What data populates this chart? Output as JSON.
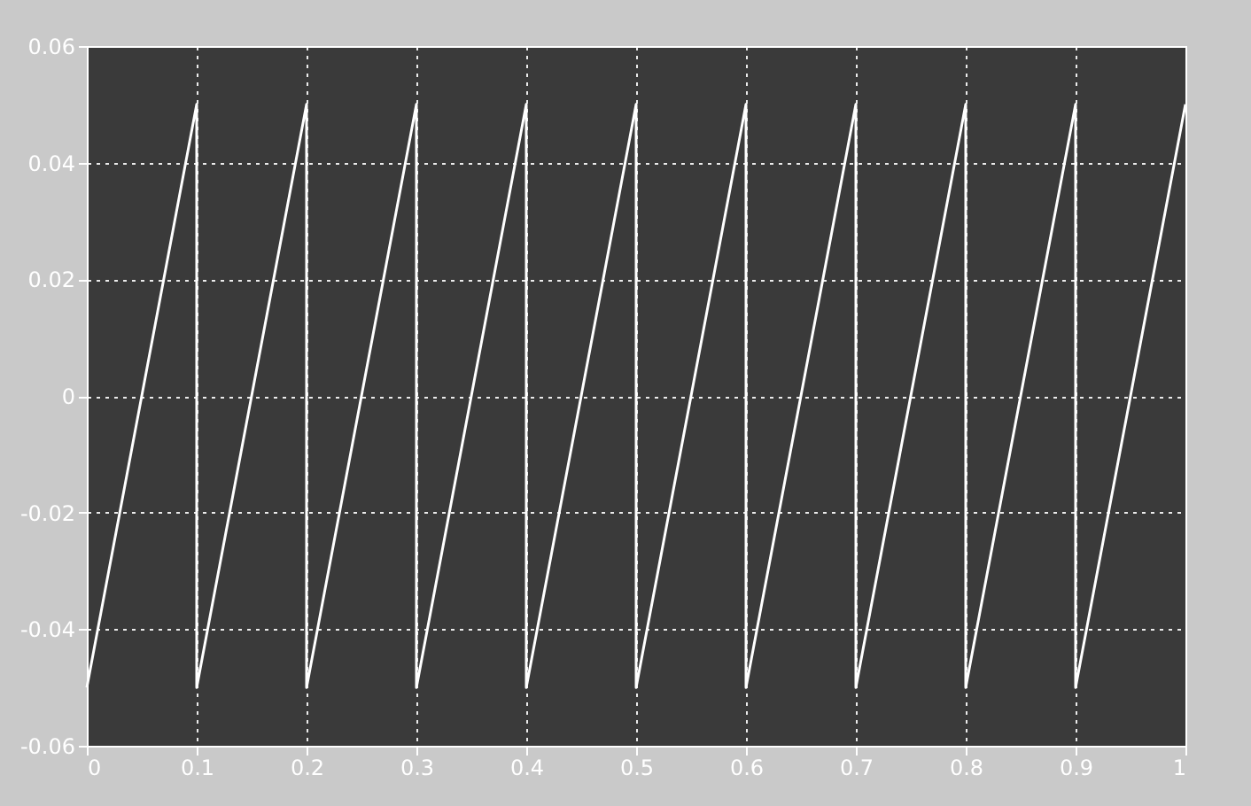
{
  "chart_data": {
    "type": "line",
    "x": [
      0,
      0.1,
      0.1,
      0.2,
      0.2,
      0.3,
      0.3,
      0.4,
      0.4,
      0.5,
      0.5,
      0.6,
      0.6,
      0.7,
      0.7,
      0.8,
      0.8,
      0.9,
      0.9,
      1.0
    ],
    "series": [
      {
        "color": "#ffffff",
        "values": [
          -0.05,
          0.05,
          -0.05,
          0.05,
          -0.05,
          0.05,
          -0.05,
          0.05,
          -0.05,
          0.05,
          -0.05,
          0.05,
          -0.05,
          0.05,
          -0.05,
          0.05,
          -0.05,
          0.05,
          -0.05,
          0.05
        ]
      }
    ],
    "xlim": [
      0,
      1
    ],
    "xticks": [
      0,
      0.1,
      0.2,
      0.3,
      0.4,
      0.5,
      0.6,
      0.7,
      0.8,
      0.9,
      1
    ],
    "ylim": [
      -0.06,
      0.06
    ],
    "yticks": [
      -0.06,
      -0.04,
      -0.02,
      0,
      0.02,
      0.04,
      0.06
    ],
    "grid": true,
    "line_style": "solid",
    "marker": "none"
  }
}
